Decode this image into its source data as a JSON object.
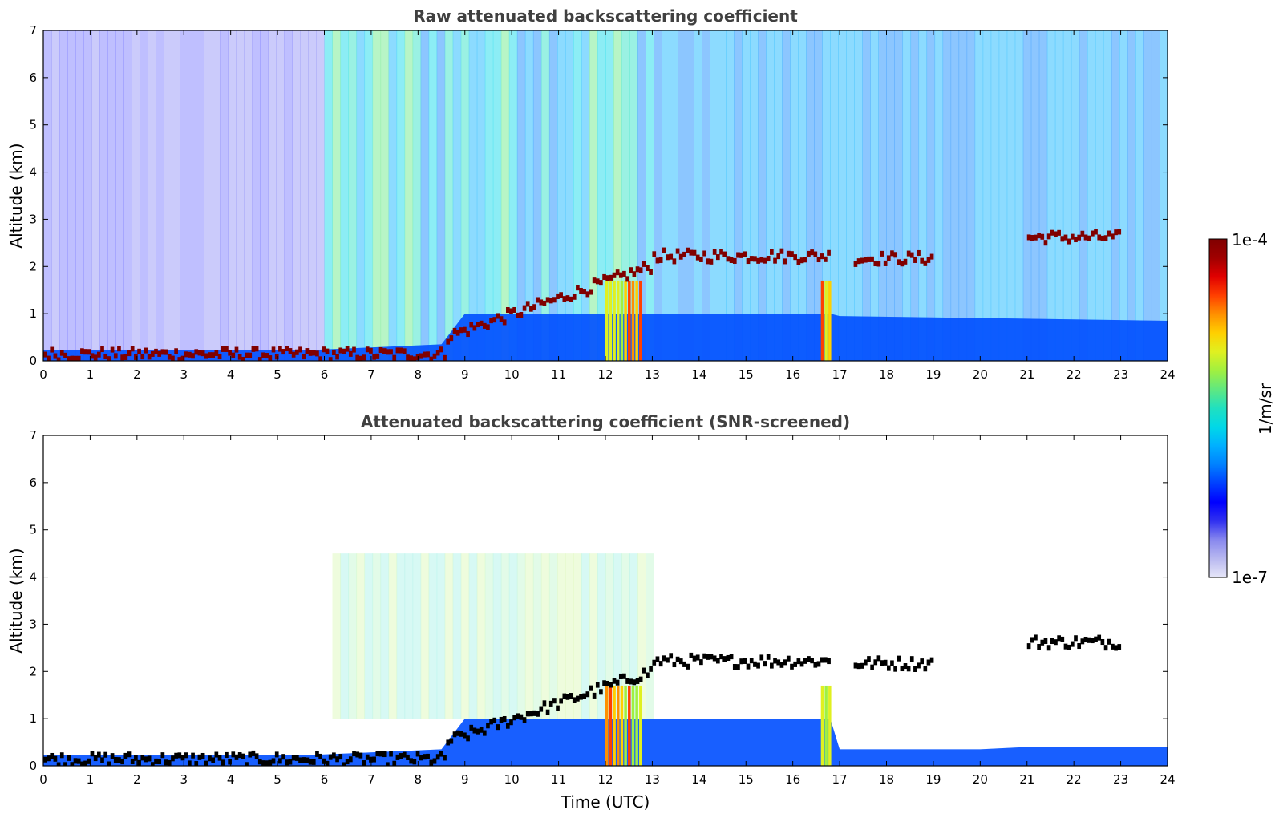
{
  "chart_data": [
    {
      "type": "heatmap",
      "id": "raw",
      "title": "Raw attenuated backscattering coefficient",
      "xlabel": "",
      "ylabel": "Altitude (km)",
      "xlim": [
        0,
        24
      ],
      "ylim": [
        0,
        7
      ],
      "xticks": [
        0,
        1,
        2,
        3,
        4,
        5,
        6,
        7,
        8,
        9,
        10,
        11,
        12,
        13,
        14,
        15,
        16,
        17,
        18,
        19,
        20,
        21,
        22,
        23,
        24
      ],
      "yticks": [
        0,
        1,
        2,
        3,
        4,
        5,
        6,
        7
      ],
      "cloud_layers": [
        {
          "time_start": 0.0,
          "time_end": 8.6,
          "altitude_km": 0.12
        },
        {
          "time_start": 8.6,
          "time_end": 13.0,
          "altitude_km": 1.6
        },
        {
          "time_start": 13.0,
          "time_end": 16.8,
          "altitude_km": 2.2
        },
        {
          "time_start": 17.3,
          "time_end": 19.0,
          "altitude_km": 2.15
        },
        {
          "time_start": 21.0,
          "time_end": 23.0,
          "altitude_km": 2.6
        }
      ],
      "boundary_layer_top_km": [
        {
          "time": 0,
          "value": 0.15
        },
        {
          "time": 8.5,
          "value": 0.3
        },
        {
          "time": 9,
          "value": 0.9
        },
        {
          "time": 16.8,
          "value": 1.0
        },
        {
          "time": 17,
          "value": 1.0
        },
        {
          "time": 24,
          "value": 0.9
        }
      ]
    },
    {
      "type": "heatmap",
      "id": "screened",
      "title": "Attenuated backscattering coefficient (SNR-screened)",
      "xlabel": "Time (UTC)",
      "ylabel": "Altitude (km)",
      "xlim": [
        0,
        24
      ],
      "ylim": [
        0,
        7
      ],
      "xticks": [
        0,
        1,
        2,
        3,
        4,
        5,
        6,
        7,
        8,
        9,
        10,
        11,
        12,
        13,
        14,
        15,
        16,
        17,
        18,
        19,
        20,
        21,
        22,
        23,
        24
      ],
      "yticks": [
        0,
        1,
        2,
        3,
        4,
        5,
        6,
        7
      ],
      "cloud_layers": [
        {
          "time_start": 0.0,
          "time_end": 8.6,
          "altitude_km": 0.12
        },
        {
          "time_start": 8.6,
          "time_end": 13.0,
          "altitude_km": 1.6
        },
        {
          "time_start": 13.0,
          "time_end": 16.8,
          "altitude_km": 2.2
        },
        {
          "time_start": 17.3,
          "time_end": 19.0,
          "altitude_km": 2.15
        },
        {
          "time_start": 21.0,
          "time_end": 23.0,
          "altitude_km": 2.6
        }
      ]
    }
  ],
  "colorbar": {
    "label": "1/m/sr",
    "min_label": "1e-7",
    "max_label": "1e-4",
    "colors": [
      "#e6e6f8",
      "#b8b8f0",
      "#8888ee",
      "#3030f0",
      "#0000ff",
      "#0040ff",
      "#0080ff",
      "#00b0ff",
      "#00d8e8",
      "#20e0c0",
      "#60e880",
      "#a0f040",
      "#e0f020",
      "#ffd000",
      "#ff9000",
      "#ff4000",
      "#e00000",
      "#a00000",
      "#800000"
    ]
  }
}
